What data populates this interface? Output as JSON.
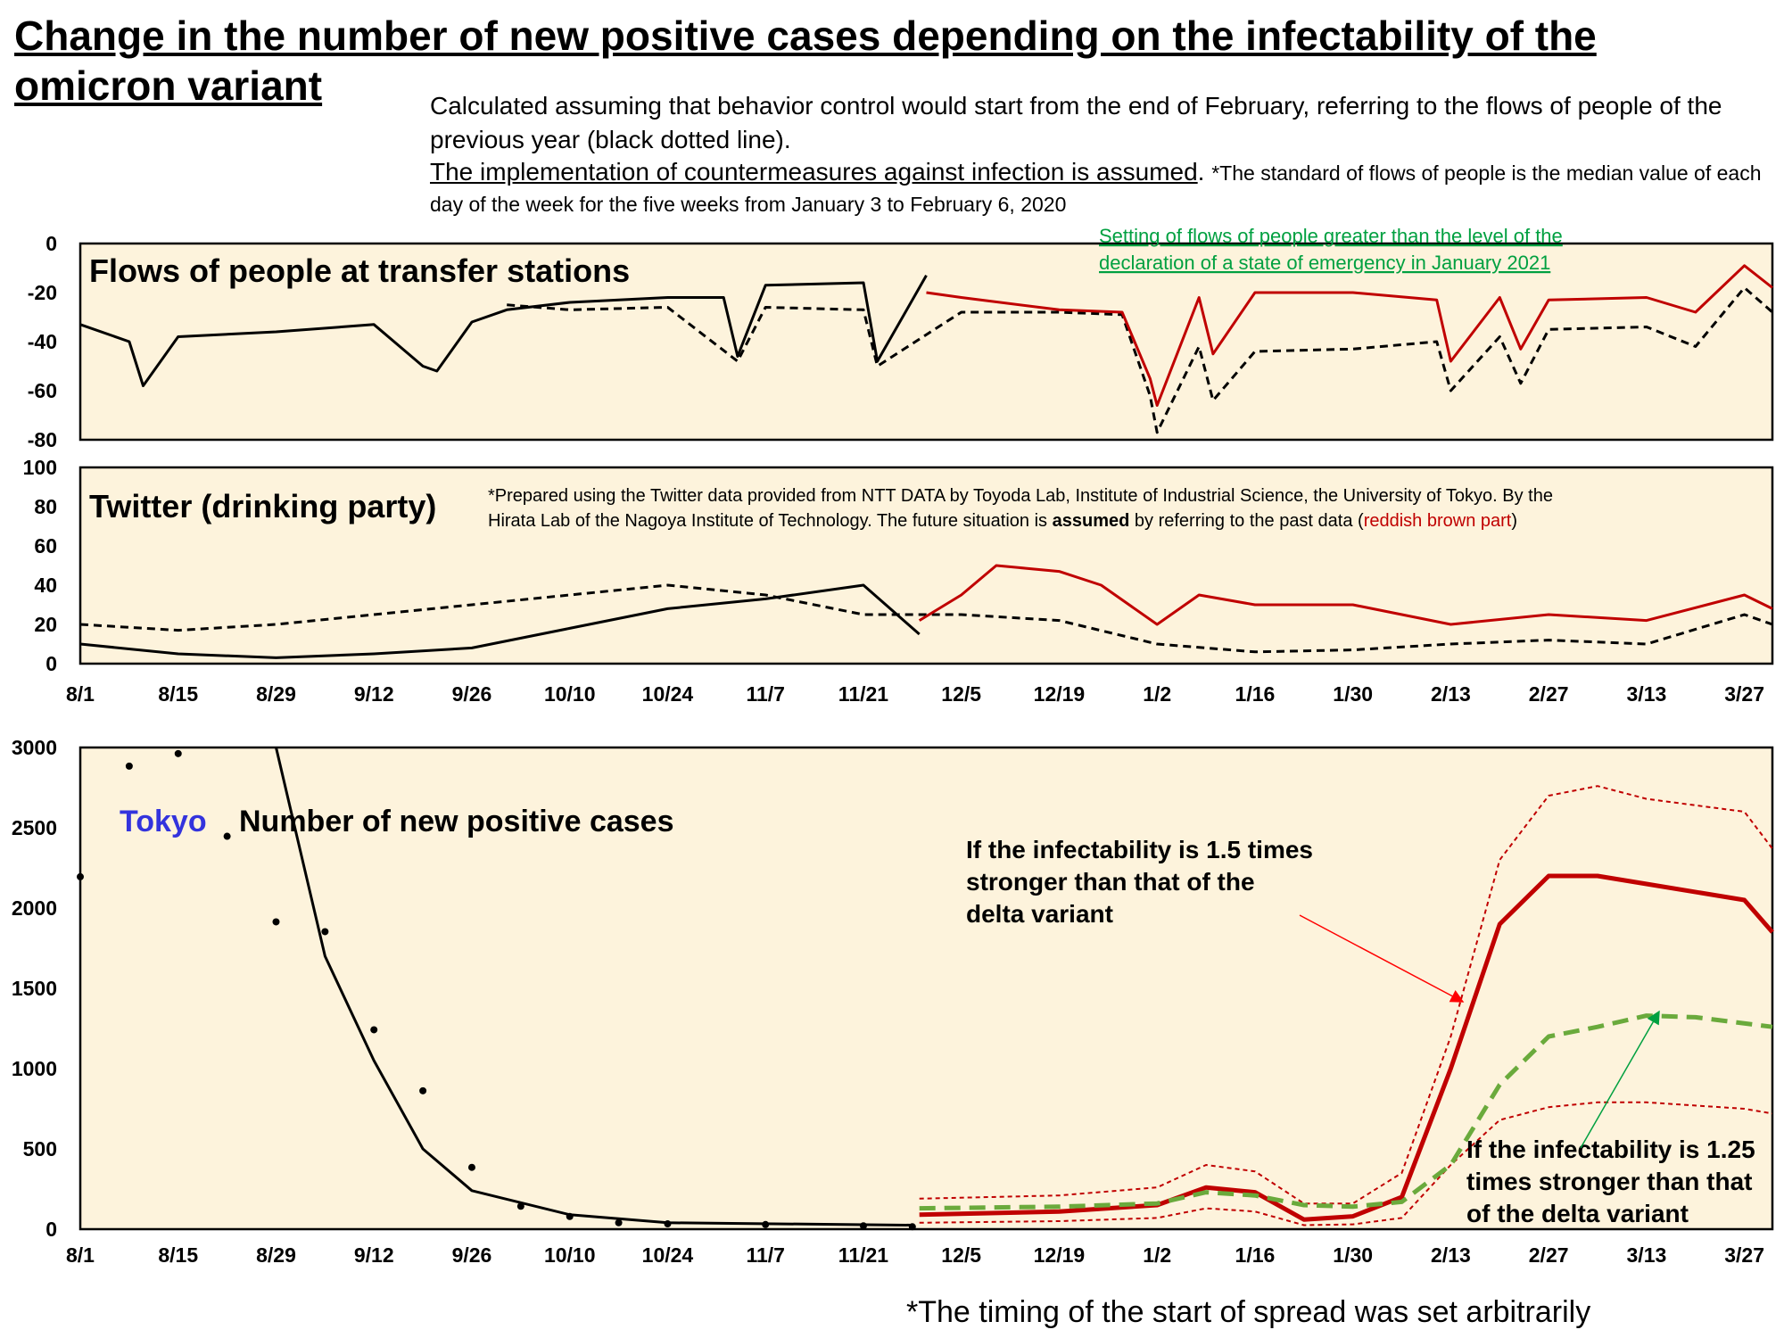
{
  "header": {
    "title_line1": "Change in the number of new positive cases depending on the infectability of the",
    "title_line2": "omicron variant",
    "subtitle_line1": "Calculated assuming that behavior control would start from the end of February, referring to the flows of people of the previous year (black dotted line).",
    "subtitle_underlined": "The implementation of countermeasures against infection is assumed",
    "subtitle_note": "*The standard of flows of people is the median value of each day of the week for the five weeks from January 3 to February 6, 2020"
  },
  "footnote": "*The timing of the start of spread was set arbitrarily",
  "colors": {
    "background": "#fdf3dc",
    "red": "#c00000",
    "green": "#6aaa3c",
    "green_text": "#00a040",
    "blue": "#3333dd"
  },
  "x_tick_labels": [
    "8/1",
    "8/15",
    "8/29",
    "9/12",
    "9/26",
    "10/10",
    "10/24",
    "11/7",
    "11/21",
    "12/5",
    "12/19",
    "1/2",
    "1/16",
    "1/30",
    "2/13",
    "2/27",
    "3/13",
    "3/27"
  ],
  "panel1": {
    "title": "Flows of people at transfer stations",
    "green_note_line1": "Setting of flows of people greater than the level of the",
    "green_note_line2": "declaration of a state of emergency in January 2021",
    "y_ticks": [
      "0",
      "-20",
      "-40",
      "-60",
      "-80"
    ]
  },
  "panel2": {
    "title": "Twitter (drinking party)",
    "note_line1": "*Prepared using the Twitter data provided from NTT DATA by Toyoda Lab, Institute of Industrial Science, the University of Tokyo. By the",
    "note_line2_a": "Hirata Lab of the Nagoya Institute of Technology. The future situation is ",
    "note_line2_b": "assumed",
    "note_line2_c": " by referring to the past data (",
    "note_line2_d": "reddish brown part",
    "note_line2_e": ")",
    "y_ticks": [
      "100",
      "80",
      "60",
      "40",
      "20",
      "0"
    ]
  },
  "panel3": {
    "title_a": "Tokyo",
    "title_b": "Number of new positive cases",
    "y_ticks": [
      "3000",
      "2500",
      "2000",
      "1500",
      "1000",
      "500",
      "0"
    ],
    "ann_15_line1": "If the infectability is 1.5 times",
    "ann_15_line2": "stronger than that of the",
    "ann_15_line3": "delta variant",
    "ann_125_line1": "If the infectability is 1.25",
    "ann_125_line2": "times stronger than that",
    "ann_125_line3": "of the delta variant"
  },
  "chart_data": [
    {
      "type": "line",
      "title": "Flows of people at transfer stations",
      "ylim": [
        -80,
        0
      ],
      "x_range": [
        "8/1",
        "3/31"
      ],
      "series": [
        {
          "name": "actual",
          "style": "black solid",
          "x": [
            "8/1",
            "8/8",
            "8/10",
            "8/15",
            "8/29",
            "9/12",
            "9/19",
            "9/21",
            "9/26",
            "10/1",
            "10/10",
            "10/24",
            "11/1",
            "11/3",
            "11/7",
            "11/21",
            "11/23",
            "11/30"
          ],
          "values": [
            -33,
            -40,
            -58,
            -38,
            -36,
            -33,
            -50,
            -52,
            -32,
            -27,
            -24,
            -22,
            -22,
            -46,
            -17,
            -16,
            -48,
            -13
          ]
        },
        {
          "name": "previous year",
          "style": "black dotted",
          "x": [
            "10/1",
            "10/10",
            "10/24",
            "11/3",
            "11/7",
            "11/21",
            "11/23",
            "12/5",
            "12/19",
            "12/28",
            "1/1",
            "1/2",
            "1/8",
            "1/10",
            "1/16",
            "1/30",
            "2/11",
            "2/13",
            "2/20",
            "2/23",
            "2/27",
            "3/13",
            "3/20",
            "3/27",
            "3/31"
          ],
          "values": [
            -25,
            -27,
            -26,
            -48,
            -26,
            -27,
            -50,
            -28,
            -28,
            -29,
            -62,
            -77,
            -42,
            -64,
            -44,
            -43,
            -40,
            -60,
            -38,
            -57,
            -35,
            -34,
            -42,
            -18,
            -28
          ]
        },
        {
          "name": "assumed",
          "style": "red solid",
          "x": [
            "11/30",
            "12/5",
            "12/19",
            "12/28",
            "1/1",
            "1/2",
            "1/8",
            "1/10",
            "1/16",
            "1/30",
            "2/11",
            "2/13",
            "2/20",
            "2/23",
            "2/27",
            "3/13",
            "3/20",
            "3/27",
            "3/31"
          ],
          "values": [
            -20,
            -22,
            -27,
            -28,
            -55,
            -66,
            -22,
            -45,
            -20,
            -20,
            -23,
            -48,
            -22,
            -43,
            -23,
            -22,
            -28,
            -9,
            -18
          ]
        }
      ]
    },
    {
      "type": "line",
      "title": "Twitter (drinking party)",
      "ylim": [
        0,
        100
      ],
      "x_range": [
        "8/1",
        "3/31"
      ],
      "series": [
        {
          "name": "actual",
          "style": "black solid",
          "x": [
            "8/1",
            "8/15",
            "8/29",
            "9/12",
            "9/26",
            "10/10",
            "10/24",
            "11/7",
            "11/21",
            "11/29"
          ],
          "values": [
            10,
            5,
            3,
            5,
            8,
            18,
            28,
            33,
            40,
            15
          ]
        },
        {
          "name": "previous year",
          "style": "black dotted",
          "x": [
            "8/1",
            "8/15",
            "8/29",
            "9/12",
            "9/26",
            "10/10",
            "10/24",
            "11/7",
            "11/21",
            "12/5",
            "12/19",
            "1/2",
            "1/16",
            "1/30",
            "2/13",
            "2/27",
            "3/13",
            "3/27",
            "3/31"
          ],
          "values": [
            20,
            17,
            20,
            25,
            30,
            35,
            40,
            35,
            25,
            25,
            22,
            10,
            6,
            7,
            10,
            12,
            10,
            25,
            20
          ]
        },
        {
          "name": "assumed",
          "style": "red solid",
          "x": [
            "11/29",
            "12/5",
            "12/10",
            "12/19",
            "12/25",
            "1/2",
            "1/8",
            "1/16",
            "1/30",
            "2/13",
            "2/27",
            "3/13",
            "3/27",
            "3/31"
          ],
          "values": [
            22,
            35,
            50,
            47,
            40,
            20,
            35,
            30,
            30,
            20,
            25,
            22,
            35,
            28
          ]
        }
      ]
    },
    {
      "type": "line",
      "title": "Tokyo Number of new positive cases",
      "ylim": [
        0,
        3000
      ],
      "x_range": [
        "8/1",
        "3/31"
      ],
      "series": [
        {
          "name": "observed",
          "style": "black dots",
          "x": [
            "8/1",
            "8/8",
            "8/15",
            "8/22",
            "8/29",
            "9/5",
            "9/12",
            "9/19",
            "9/26",
            "10/3",
            "10/10",
            "10/17",
            "10/24",
            "11/7",
            "11/21",
            "11/28"
          ],
          "values": [
            2195,
            2884,
            2962,
            2447,
            1914,
            1853,
            1242,
            862,
            385,
            143,
            79,
            40,
            33,
            29,
            21,
            15
          ]
        },
        {
          "name": "fit",
          "style": "black solid",
          "x": [
            "8/29",
            "9/5",
            "9/12",
            "9/19",
            "9/26",
            "10/10",
            "10/24",
            "11/28"
          ],
          "values": [
            3000,
            1700,
            1050,
            500,
            240,
            90,
            40,
            25
          ]
        },
        {
          "name": "If the infectability is 1.5 times stronger than that of the delta variant",
          "style": "red solid thick",
          "x": [
            "11/29",
            "12/19",
            "1/2",
            "1/9",
            "1/16",
            "1/23",
            "1/30",
            "2/6",
            "2/13",
            "2/20",
            "2/27",
            "3/6",
            "3/13",
            "3/27",
            "3/31"
          ],
          "values": [
            90,
            110,
            150,
            260,
            230,
            60,
            80,
            200,
            1000,
            1900,
            2200,
            2200,
            2150,
            2050,
            1850
          ]
        },
        {
          "name": "upper band",
          "style": "red dotted",
          "x": [
            "11/29",
            "12/19",
            "1/2",
            "1/9",
            "1/16",
            "1/23",
            "1/30",
            "2/6",
            "2/13",
            "2/20",
            "2/27",
            "3/6",
            "3/13",
            "3/27",
            "3/31"
          ],
          "values": [
            190,
            210,
            260,
            400,
            360,
            160,
            160,
            350,
            1200,
            2300,
            2700,
            2760,
            2680,
            2600,
            2370
          ]
        },
        {
          "name": "lower band",
          "style": "red dotted",
          "x": [
            "11/29",
            "12/19",
            "1/2",
            "1/9",
            "1/16",
            "1/23",
            "1/30",
            "2/6",
            "2/13",
            "2/20",
            "2/27",
            "3/6",
            "3/13",
            "3/27",
            "3/31"
          ],
          "values": [
            40,
            50,
            70,
            130,
            110,
            25,
            30,
            70,
            400,
            680,
            760,
            790,
            790,
            750,
            720
          ]
        },
        {
          "name": "If the infectability is 1.25 times stronger than that of the delta variant",
          "style": "green dashed",
          "x": [
            "11/29",
            "12/19",
            "1/2",
            "1/9",
            "1/16",
            "1/23",
            "1/30",
            "2/6",
            "2/13",
            "2/20",
            "2/27",
            "3/6",
            "3/13",
            "3/20",
            "3/31"
          ],
          "values": [
            130,
            140,
            160,
            230,
            210,
            150,
            140,
            170,
            400,
            900,
            1200,
            1260,
            1330,
            1320,
            1260
          ]
        }
      ]
    }
  ]
}
